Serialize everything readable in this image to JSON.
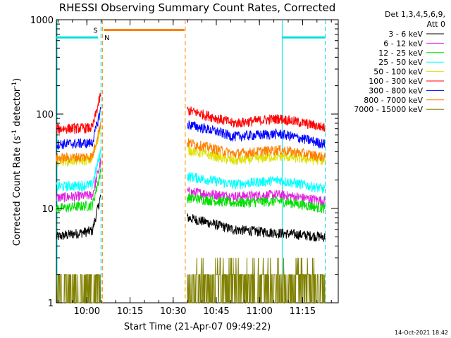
{
  "chart_data": {
    "type": "line",
    "title": "RHESSI Observing Summary Count Rates, Corrected",
    "xlabel": "Start Time (21-Apr-07 09:49:22)",
    "ylabel_main": "Corrected Count Rate (s",
    "ylabel_sup1": "-1",
    "ylabel_mid": " detector",
    "ylabel_sup2": "-1",
    "ylabel_end": ")",
    "yscale": "log",
    "ylim": [
      1,
      1000
    ],
    "xlim_minutes": [
      0,
      98
    ],
    "xticks": [
      {
        "label": "10:00",
        "value": 10.6
      },
      {
        "label": "10:15",
        "value": 25.6
      },
      {
        "label": "10:30",
        "value": 40.6
      },
      {
        "label": "10:45",
        "value": 55.6
      },
      {
        "label": "11:00",
        "value": 70.6
      },
      {
        "label": "11:15",
        "value": 85.6
      }
    ],
    "yticks": [
      {
        "label": "1",
        "value": 1
      },
      {
        "label": "10",
        "value": 10
      },
      {
        "label": "100",
        "value": 100
      },
      {
        "label": "1000",
        "value": 1000
      }
    ],
    "legend_header": [
      "Det 1,3,4,5,6,9,",
      "Att 0"
    ],
    "series": [
      {
        "name": "3 - 6 keV",
        "color": "#000000",
        "pre": [
          5.0,
          6.0
        ],
        "post": [
          8.0,
          6.0,
          5.5,
          5.0
        ]
      },
      {
        "name": "6 - 12 keV",
        "color": "#e020e0",
        "pre": [
          13.0,
          14.0
        ],
        "post": [
          15.0,
          13.5,
          14.0,
          12.0
        ]
      },
      {
        "name": "12 - 25 keV",
        "color": "#00e000",
        "pre": [
          10.0,
          11.0
        ],
        "post": [
          13.0,
          11.5,
          12.0,
          10.0
        ]
      },
      {
        "name": "25 - 50 keV",
        "color": "#00ffff",
        "pre": [
          17.0,
          18.0
        ],
        "post": [
          22.0,
          18.0,
          20.0,
          16.0
        ]
      },
      {
        "name": "50 - 100 keV",
        "color": "#e0e000",
        "pre": [
          32.0,
          33.0
        ],
        "post": [
          42.0,
          32.0,
          36.0,
          32.0
        ]
      },
      {
        "name": "100 - 300 keV",
        "color": "#ff0000",
        "pre": [
          70.0,
          72.0
        ],
        "post": [
          110.0,
          80.0,
          90.0,
          72.0
        ]
      },
      {
        "name": "300 - 800 keV",
        "color": "#0000ff",
        "pre": [
          48.0,
          50.0
        ],
        "post": [
          78.0,
          58.0,
          62.0,
          48.0
        ]
      },
      {
        "name": "800 - 7000 keV",
        "color": "#ff8000",
        "pre": [
          34.0,
          36.0
        ],
        "post": [
          50.0,
          38.0,
          42.0,
          35.0
        ]
      },
      {
        "name": "7000 - 15000 keV",
        "color": "#808000",
        "pre": [
          1.5,
          2.0
        ],
        "post": [
          1.5,
          2.0,
          1.8,
          1.5
        ]
      }
    ],
    "annotations": {
      "saa_label": "S",
      "night_label": "N",
      "saa_color": "#ff8000",
      "night_color": "#00e0e0"
    },
    "footer_timestamp": "14-Oct-2021 18:42"
  }
}
